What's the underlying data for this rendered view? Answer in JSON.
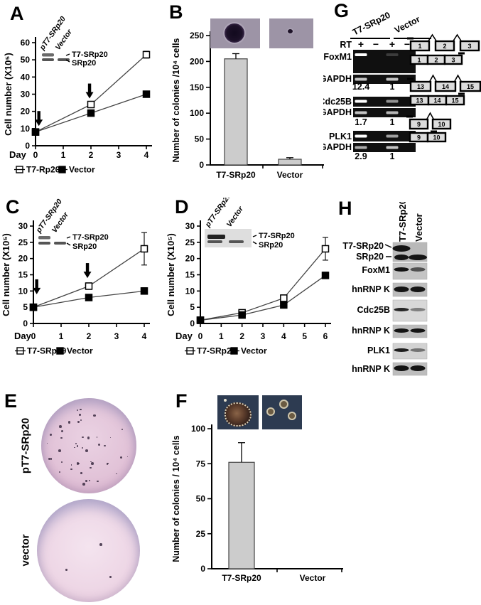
{
  "colors": {
    "bar_fill": "#cccccc",
    "gel_background": "#101010",
    "dish_pink": "#e2c3d8",
    "photo_bg_soft_agar": "#9d94a6",
    "photo_bg_darkfield": "#2d3b51"
  },
  "panels": {
    "A": {
      "letter": "A",
      "inset": {
        "lane_labels": [
          "pT7-SRp20",
          "Vector"
        ],
        "band_labels": [
          "T7-SRp20",
          "SRp20"
        ]
      },
      "legend": [
        {
          "marker": "open",
          "label": "T7-Rp20"
        },
        {
          "marker": "filled",
          "label": "Vector"
        }
      ]
    },
    "B": {
      "letter": "B"
    },
    "C": {
      "letter": "C",
      "inset": {
        "lane_labels": [
          "pT7-SRp20",
          "Vector"
        ],
        "band_labels": [
          "T7-SRp20",
          "SRp20"
        ]
      },
      "legend": [
        {
          "marker": "open",
          "label": "T7-SRp20"
        },
        {
          "marker": "filled",
          "label": "Vector"
        }
      ]
    },
    "D": {
      "letter": "D",
      "inset": {
        "lane_labels": [
          "pT7-SRp20",
          "Vector"
        ],
        "band_labels": [
          "T7-SRp20",
          "SRp20"
        ]
      },
      "legend": [
        {
          "marker": "open",
          "label": "T7-SRp20"
        },
        {
          "marker": "filled",
          "label": "Vector"
        }
      ]
    },
    "E": {
      "letter": "E",
      "dishes": [
        {
          "label": "pT7-SRp20"
        },
        {
          "label": "vector"
        }
      ]
    },
    "F": {
      "letter": "F"
    },
    "G": {
      "letter": "G",
      "group_labels": [
        "T7-SRp20",
        "Vector"
      ],
      "rt_label": "RT",
      "rt_signs": [
        "+",
        "−",
        "+",
        "−"
      ],
      "gel_rows": [
        {
          "type": "gel",
          "label": "FoxM1",
          "bands": [
            1,
            0,
            0.18,
            0
          ]
        },
        {
          "type": "gel",
          "label": "GAPDH",
          "bands": [
            0.75,
            0,
            0.75,
            0
          ]
        },
        {
          "type": "ratio",
          "values": [
            "12.4",
            "1"
          ]
        },
        {
          "type": "gel",
          "label": "Cdc25B",
          "bands": [
            1,
            0,
            0.55,
            0
          ]
        },
        {
          "type": "gel",
          "label": "GAPDH",
          "bands": [
            0.75,
            0,
            0.7,
            0
          ]
        },
        {
          "type": "ratio",
          "values": [
            "1.7",
            "1"
          ]
        },
        {
          "type": "gel",
          "label": "PLK1",
          "bands": [
            1,
            0,
            0.6,
            0
          ]
        },
        {
          "type": "gel",
          "label": "GAPDH",
          "bands": [
            0.65,
            0,
            0.75,
            0
          ]
        },
        {
          "type": "ratio",
          "values": [
            "2.9",
            "1"
          ]
        }
      ],
      "splice_diagrams": [
        {
          "gene": "FoxM1",
          "pre_mrna_exons": [
            "1",
            "2",
            "3"
          ],
          "spliced_exons": [
            "1",
            "2",
            "3"
          ]
        },
        {
          "gene": "Cdc25B",
          "pre_mrna_exons": [
            "13",
            "14",
            "15"
          ],
          "spliced_exons": [
            "13",
            "14",
            "15"
          ]
        },
        {
          "gene": "PLK1",
          "pre_mrna_exons": [
            "9",
            "10"
          ],
          "spliced_exons": [
            "9",
            "10"
          ]
        }
      ]
    },
    "H": {
      "letter": "H",
      "lane_labels": [
        "T7-SRp20",
        "Vector"
      ],
      "blots": [
        {
          "labels": [
            "T7-SRp20",
            "SRp20"
          ],
          "band_rows": [
            [
              1,
              0
            ],
            [
              0.9,
              1
            ]
          ]
        },
        {
          "labels": [
            "FoxM1"
          ],
          "band_rows": [
            [
              0.9,
              0.55
            ]
          ]
        },
        {
          "labels": [
            "hnRNP K"
          ],
          "band_rows": [
            [
              1,
              1
            ]
          ]
        },
        {
          "labels": [
            "Cdc25B"
          ],
          "band_rows": [
            [
              0.8,
              0.35
            ]
          ]
        },
        {
          "labels": [
            "hnRNP K"
          ],
          "band_rows": [
            [
              1,
              1
            ]
          ]
        },
        {
          "labels": [
            "PLK1"
          ],
          "band_rows": [
            [
              0.85,
              0.4
            ]
          ]
        },
        {
          "labels": [
            "hnRNP K"
          ],
          "band_rows": [
            [
              1,
              1
            ]
          ]
        }
      ]
    }
  },
  "chart_data": [
    {
      "id": "A",
      "type": "line",
      "title": "",
      "xlabel": "Day",
      "ylabel": "Cell number (X10⁵)",
      "xticks": [
        0,
        1,
        2,
        3,
        4
      ],
      "yticks": [
        0,
        10,
        20,
        30,
        40,
        50,
        60
      ],
      "xlim": [
        0,
        4
      ],
      "ylim": [
        0,
        60
      ],
      "grid": false,
      "legend_position": "bottom",
      "x": [
        0,
        2,
        4
      ],
      "series": [
        {
          "name": "T7-Rp20",
          "marker": "open-square",
          "values": [
            8,
            24,
            53
          ],
          "errors": [
            1,
            1.5,
            2
          ]
        },
        {
          "name": "Vector",
          "marker": "filled-square",
          "values": [
            8,
            19,
            30
          ],
          "errors": [
            0,
            0,
            0
          ]
        }
      ],
      "arrows": [
        {
          "x": 0.12,
          "tip_y": 11.5
        },
        {
          "x": 1.95,
          "tip_y": 27.5
        }
      ]
    },
    {
      "id": "B",
      "type": "bar",
      "title": "",
      "xlabel": "",
      "ylabel": "Number of colonies /10⁴ cells",
      "categories": [
        "T7-SRp20",
        "Vector"
      ],
      "values": [
        205,
        11
      ],
      "errors": [
        10,
        3
      ],
      "yticks": [
        0,
        50,
        100,
        150,
        200,
        250
      ],
      "ylim": [
        0,
        250
      ],
      "grid": false
    },
    {
      "id": "C",
      "type": "line",
      "title": "",
      "xlabel": "Day",
      "ylabel": "Cell number (X10⁵)",
      "xticks": [
        0,
        1,
        2,
        3,
        4
      ],
      "yticks": [
        0,
        5,
        10,
        15,
        20,
        25,
        30
      ],
      "xlim": [
        0,
        4
      ],
      "ylim": [
        0,
        30
      ],
      "grid": false,
      "legend_position": "bottom",
      "x": [
        0,
        2,
        4
      ],
      "series": [
        {
          "name": "T7-SRp20",
          "marker": "open-square",
          "values": [
            5,
            11.5,
            23
          ],
          "errors": [
            0.5,
            1,
            5
          ]
        },
        {
          "name": "Vector",
          "marker": "filled-square",
          "values": [
            5,
            8,
            10
          ],
          "errors": [
            0,
            0,
            1
          ]
        }
      ],
      "arrows": [
        {
          "x": 0.12,
          "tip_y": 9
        },
        {
          "x": 1.95,
          "tip_y": 14
        }
      ]
    },
    {
      "id": "D",
      "type": "line",
      "title": "",
      "xlabel": "Day",
      "ylabel": "Cell number (X10⁵)",
      "xticks": [
        0,
        1,
        2,
        3,
        4,
        5,
        6
      ],
      "yticks": [
        0,
        5,
        10,
        15,
        20,
        25,
        30
      ],
      "xlim": [
        0,
        6
      ],
      "ylim": [
        0,
        30
      ],
      "grid": false,
      "legend_position": "bottom",
      "x": [
        0,
        2,
        4,
        6
      ],
      "series": [
        {
          "name": "T7-SRp20",
          "marker": "open-square",
          "values": [
            1,
            3.3,
            7.8,
            23
          ],
          "errors": [
            0,
            0.5,
            1,
            3.5
          ]
        },
        {
          "name": "Vector",
          "marker": "filled-square",
          "values": [
            1,
            2.6,
            5.7,
            14.8
          ],
          "errors": [
            0,
            0,
            0.5,
            1
          ]
        }
      ],
      "arrows": []
    },
    {
      "id": "F",
      "type": "bar",
      "title": "",
      "xlabel": "",
      "ylabel": "Number of colonies / 10⁴ cells",
      "categories": [
        "T7-SRp20",
        "Vector"
      ],
      "values": [
        76,
        0
      ],
      "errors": [
        14,
        0
      ],
      "yticks": [
        0,
        25,
        50,
        75,
        100
      ],
      "ylim": [
        0,
        100
      ],
      "grid": false
    }
  ]
}
